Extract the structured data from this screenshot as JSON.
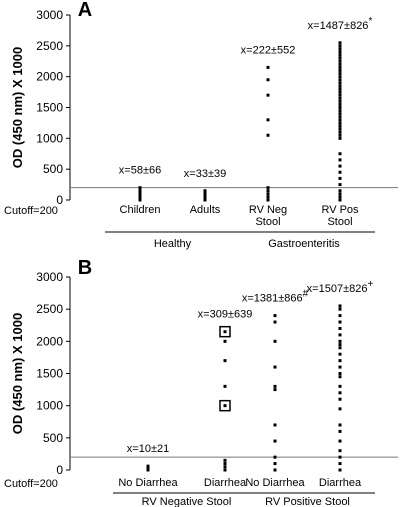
{
  "chart_data": [
    {
      "type": "strip",
      "panel": "A",
      "ylabel": "OD (450 nm) X 1000",
      "ylim": [
        0,
        3000
      ],
      "yticks": [
        0,
        500,
        1000,
        1500,
        2000,
        2500,
        3000
      ],
      "cutoff": {
        "value": 200,
        "label": "Cutoff=200"
      },
      "categories": [
        [
          "Children"
        ],
        [
          "Adults"
        ],
        [
          "RV Neg",
          "Stool"
        ],
        [
          "RV Pos",
          "Stool"
        ]
      ],
      "values": [
        [
          0,
          20,
          40,
          60,
          80,
          100,
          120,
          140,
          160,
          180,
          200
        ],
        [
          0,
          25,
          50,
          75,
          100,
          125,
          150
        ],
        [
          2150,
          1950,
          1700,
          1300,
          1050,
          200,
          150,
          100,
          50,
          0
        ],
        [
          2550,
          2500,
          2450,
          2400,
          2350,
          2300,
          2250,
          2200,
          2150,
          2100,
          2050,
          2000,
          1950,
          1900,
          1850,
          1800,
          1750,
          1700,
          1650,
          1600,
          1550,
          1500,
          1450,
          1400,
          1350,
          1300,
          1250,
          1200,
          1150,
          1100,
          1050,
          1000,
          750,
          650,
          550,
          450,
          350,
          250,
          150,
          100,
          50,
          0
        ]
      ],
      "annotations": [
        {
          "text": "x=58±66"
        },
        {
          "text": "x=33±39"
        },
        {
          "text": "x=222±552"
        },
        {
          "text": "x=1487±826",
          "sup": "*"
        }
      ],
      "groups": [
        {
          "label": "Healthy",
          "size": 2
        },
        {
          "label": "Gastroenteritis",
          "size": 2
        }
      ]
    },
    {
      "type": "strip",
      "panel": "B",
      "ylabel": "OD (450 nm) X 1000",
      "ylim": [
        0,
        3000
      ],
      "yticks": [
        0,
        500,
        1000,
        1500,
        2000,
        2500,
        3000
      ],
      "cutoff": {
        "value": 200,
        "label": "Cutoff=200"
      },
      "categories": [
        [
          "No Diarrhea"
        ],
        [
          "Diarrhea"
        ],
        [
          "No Diarrhea"
        ],
        [
          "Diarrhea"
        ]
      ],
      "values": [
        [
          0,
          20,
          40,
          60
        ],
        [
          2150,
          2000,
          1700,
          1300,
          1000,
          150,
          100,
          50,
          0
        ],
        [
          2400,
          2300,
          2000,
          1600,
          1300,
          1250,
          700,
          450,
          200,
          100,
          0
        ],
        [
          2550,
          2500,
          2400,
          2300,
          2200,
          2100,
          2000,
          1950,
          1900,
          1800,
          1700,
          1600,
          1500,
          1450,
          1300,
          1200,
          1100,
          950,
          700,
          600,
          450,
          300,
          200,
          100,
          0
        ]
      ],
      "boxed": [
        [],
        [
          2150,
          1000
        ],
        [],
        []
      ],
      "annotations": [
        {
          "text": "x=10±21"
        },
        {
          "text": "x=309±639"
        },
        {
          "text": "x=1381±866",
          "sup": "#"
        },
        {
          "text": "x=1507±826",
          "sup": "+"
        }
      ],
      "groups": [
        {
          "label": "RV Negative Stool",
          "size": 2
        },
        {
          "label": "RV Positive Stool",
          "size": 2
        }
      ]
    }
  ]
}
